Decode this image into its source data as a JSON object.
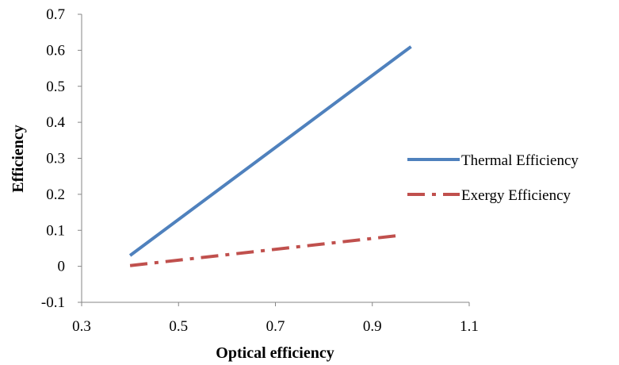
{
  "chart_data": {
    "type": "line",
    "title": "",
    "xlabel": "Optical efficiency",
    "ylabel": "Efficiency",
    "xlim": [
      0.3,
      1.1
    ],
    "ylim": [
      -0.1,
      0.7
    ],
    "x_ticks": [
      0.3,
      0.5,
      0.7,
      0.9,
      1.1
    ],
    "y_ticks": [
      -0.1,
      0,
      0.1,
      0.2,
      0.3,
      0.4,
      0.5,
      0.6,
      0.7
    ],
    "x_tick_labels": [
      "0.3",
      "0.5",
      "0.7",
      "0.9",
      "1.1"
    ],
    "y_tick_labels": [
      "-0.1",
      "0",
      "0.1",
      "0.2",
      "0.3",
      "0.4",
      "0.5",
      "0.6",
      "0.7"
    ],
    "grid": false,
    "legend_position": "right",
    "series": [
      {
        "name": "Thermal Efficiency",
        "color": "#4f81bd",
        "style": "solid",
        "x": [
          0.4,
          0.98
        ],
        "y": [
          0.03,
          0.61
        ]
      },
      {
        "name": "Exergy Efficiency",
        "color": "#c0504d",
        "style": "dash-dot",
        "x": [
          0.4,
          0.95
        ],
        "y": [
          0.002,
          0.085
        ]
      }
    ]
  }
}
